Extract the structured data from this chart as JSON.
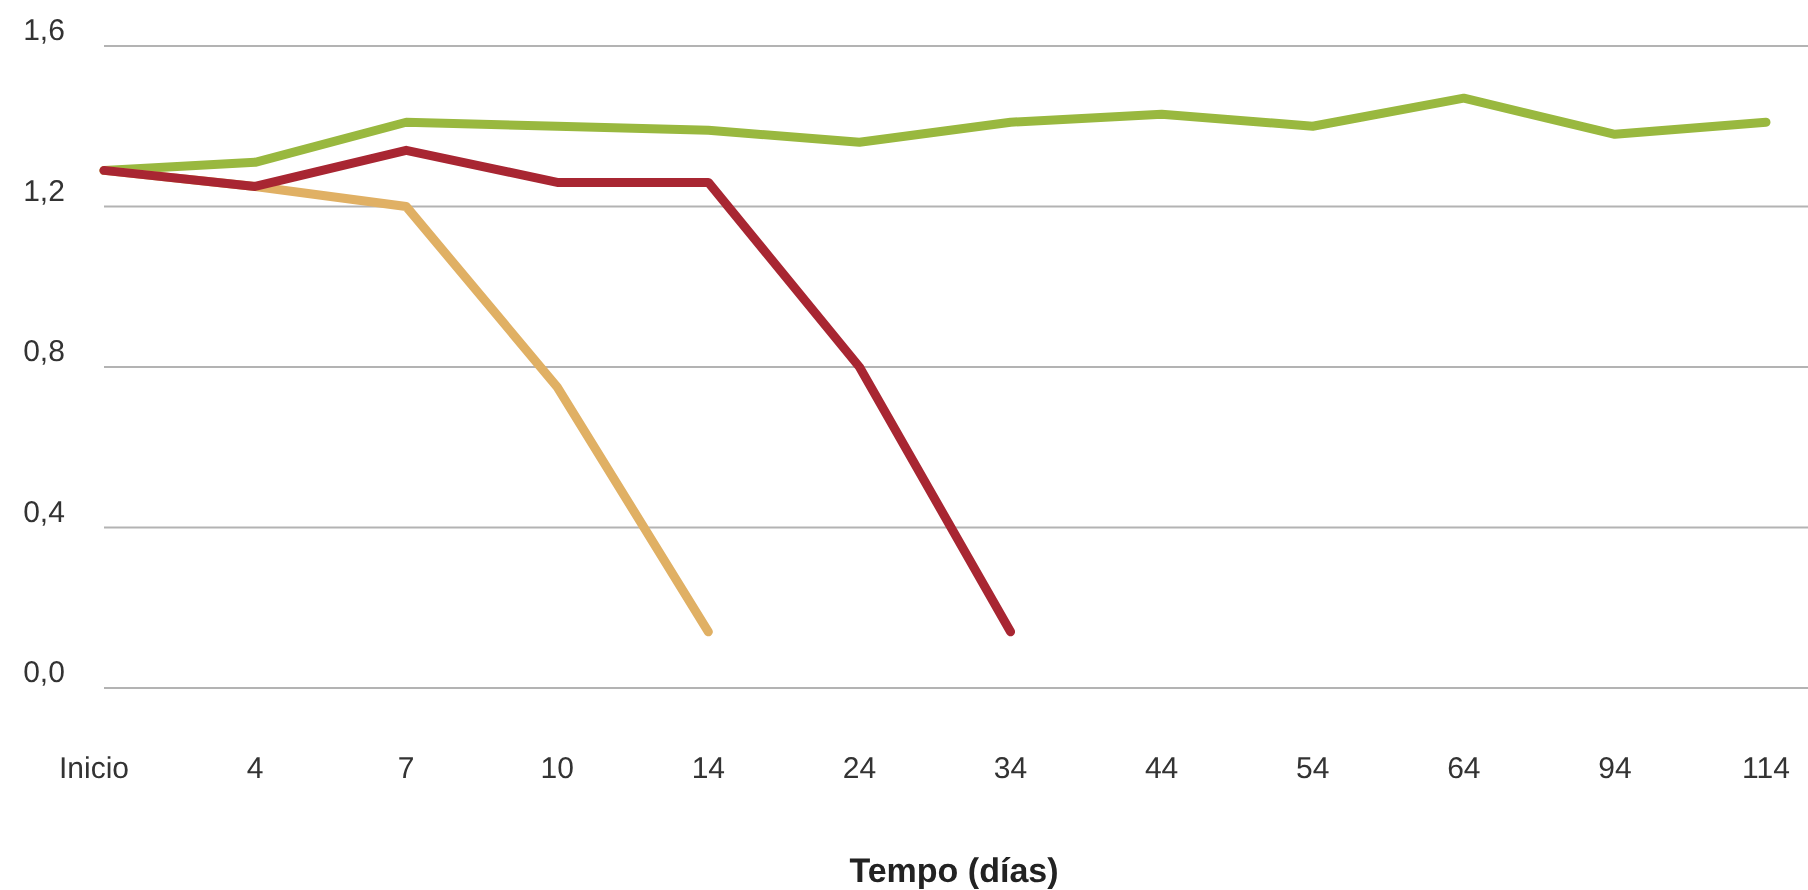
{
  "chart_data": {
    "type": "line",
    "xlabel": "Tempo (días)",
    "categories": [
      "Inicio",
      "4",
      "7",
      "10",
      "14",
      "24",
      "34",
      "44",
      "54",
      "64",
      "94",
      "114"
    ],
    "series": [
      {
        "color": "#99b83f",
        "values": [
          1.29,
          1.31,
          1.41,
          1.4,
          1.39,
          1.36,
          1.41,
          1.43,
          1.4,
          1.47,
          1.38,
          1.41
        ]
      },
      {
        "color": "#e0b064",
        "values": [
          1.29,
          1.25,
          1.2,
          0.75,
          0.14,
          null,
          null,
          null,
          null,
          null,
          null,
          null
        ]
      },
      {
        "color": "#a82632",
        "values": [
          1.29,
          1.25,
          1.34,
          1.26,
          1.26,
          0.8,
          0.14,
          null,
          null,
          null,
          null,
          null
        ]
      }
    ],
    "ylim": [
      0,
      1.6
    ],
    "yticks": [
      {
        "value": 0,
        "label": "0,0"
      },
      {
        "value": 0.4,
        "label": "0,4"
      },
      {
        "value": 0.8,
        "label": "0,8"
      },
      {
        "value": 1.2,
        "label": "1,2"
      },
      {
        "value": 1.6,
        "label": "1,6"
      }
    ],
    "grid": "y",
    "marker": "none",
    "line_style": "solid"
  }
}
